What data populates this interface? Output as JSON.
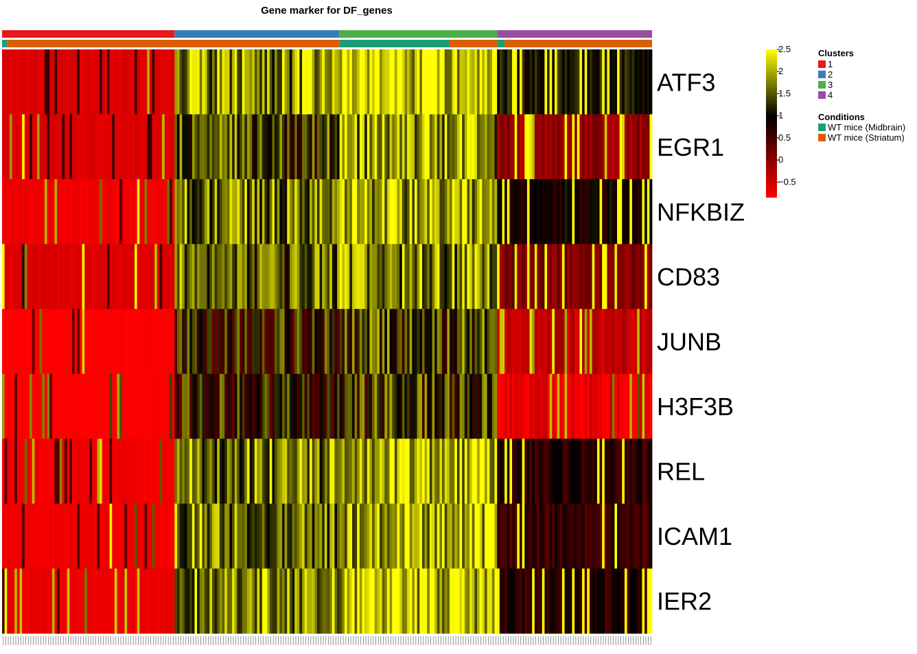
{
  "chart_data": {
    "type": "heatmap",
    "title": "Gene marker for  DF_genes",
    "genes": [
      "ATF3",
      "EGR1",
      "NFKBIZ",
      "CD83",
      "JUNB",
      "H3F3B",
      "REL",
      "ICAM1",
      "IER2"
    ],
    "n_cells": 260,
    "color_scale": {
      "stops": [
        {
          "value": -0.85,
          "color": "#ff0000"
        },
        {
          "value": 1.0,
          "color": "#000000"
        },
        {
          "value": 2.5,
          "color": "#ffff00"
        }
      ],
      "ticks": [
        "2.5",
        "2",
        "1.5",
        "1",
        "0.5",
        "0",
        "−0.5"
      ],
      "tick_values": [
        2.5,
        2.0,
        1.5,
        1.0,
        0.5,
        0.0,
        -0.5
      ],
      "min": -0.85,
      "max": 2.5
    },
    "clusters": {
      "title": "Clusters",
      "items": [
        {
          "label": "1",
          "color": "#e41a1c",
          "cells": 69
        },
        {
          "label": "2",
          "color": "#377eb8",
          "cells": 66
        },
        {
          "label": "3",
          "color": "#4daf4a",
          "cells": 63
        },
        {
          "label": "4",
          "color": "#984ea3",
          "cells": 62
        }
      ]
    },
    "conditions": {
      "title": "Conditions",
      "items": [
        {
          "label": "WT mice (Midbrain)",
          "color": "#1b9e77"
        },
        {
          "label": "WT mice (Striatum)",
          "color": "#d95f02"
        }
      ],
      "segments": [
        {
          "condition": 0,
          "cells": 2
        },
        {
          "condition": 1,
          "cells": 133
        },
        {
          "condition": 0,
          "cells": 44
        },
        {
          "condition": 1,
          "cells": 19
        },
        {
          "condition": 0,
          "cells": 3
        },
        {
          "condition": 1,
          "cells": 59
        }
      ]
    },
    "row_values": [
      [
        -0.6,
        1.8,
        2.3,
        2.0
      ],
      [
        -0.6,
        1.4,
        1.9,
        0.8
      ],
      [
        -0.75,
        1.6,
        2.0,
        1.8
      ],
      [
        -0.6,
        1.5,
        1.8,
        1.0
      ],
      [
        -0.85,
        1.0,
        1.3,
        0.5
      ],
      [
        -0.85,
        1.0,
        1.2,
        0.2
      ],
      [
        -0.75,
        1.8,
        2.1,
        1.6
      ],
      [
        -0.75,
        1.7,
        2.1,
        1.5
      ],
      [
        -0.7,
        1.9,
        2.2,
        1.6
      ]
    ]
  }
}
